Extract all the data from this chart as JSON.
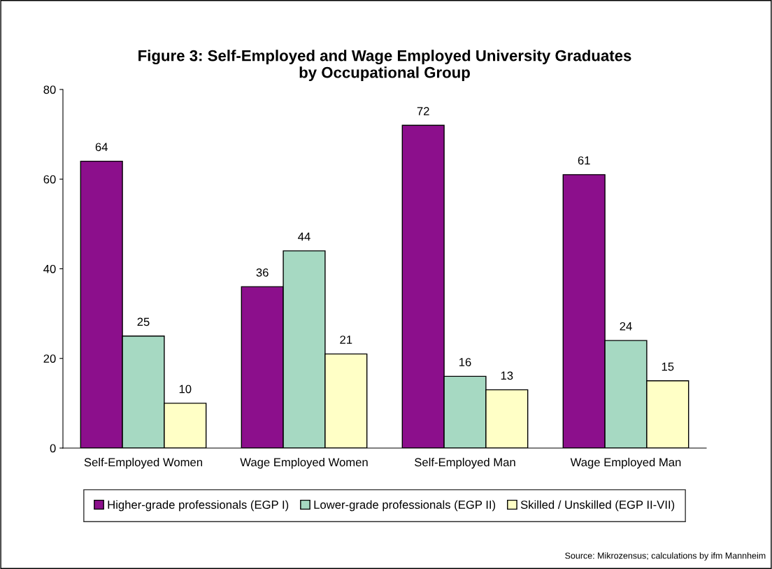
{
  "chart_data": {
    "type": "bar",
    "title": "Figure 3: Self-Employed and Wage Employed University Graduates\nby Occupational Group",
    "categories": [
      "Self-Employed Women",
      "Wage Employed Women",
      "Self-Employed Man",
      "Wage Employed Man"
    ],
    "series": [
      {
        "name": "Higher-grade professionals (EGP I)",
        "color": "#8c0f8c",
        "values": [
          64,
          36,
          72,
          61
        ]
      },
      {
        "name": "Lower-grade professionals (EGP II)",
        "color": "#a6d9c2",
        "values": [
          25,
          44,
          16,
          24
        ]
      },
      {
        "name": "Skilled / Unskilled (EGP II-VII)",
        "color": "#ffffc6",
        "values": [
          10,
          21,
          13,
          15
        ]
      }
    ],
    "ylim": [
      0,
      80
    ],
    "yticks": [
      0,
      20,
      40,
      60,
      80
    ],
    "data_labels": true,
    "grid": false,
    "legend": "bottom",
    "annotations": [
      "Source: Mikrozensus; calculations by ifm Mannheim"
    ]
  }
}
